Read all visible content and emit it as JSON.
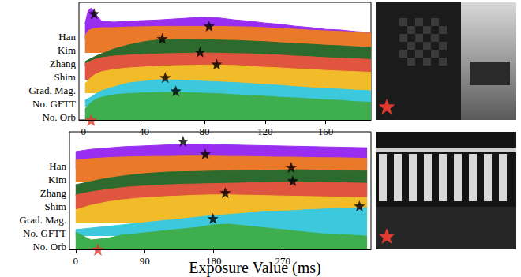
{
  "chart_data": [
    {
      "type": "ridgeline",
      "xlim": [
        -3,
        190
      ],
      "xticks": [
        0,
        40,
        80,
        120,
        160
      ],
      "ylim": [
        0,
        1
      ],
      "grid": false,
      "tick_labels": "x",
      "marker": "star",
      "reference_exposure": 5,
      "x": [
        1,
        3,
        5,
        8,
        12,
        20,
        30,
        40,
        50,
        60,
        70,
        80,
        90,
        100,
        110,
        120,
        130,
        140,
        150,
        160,
        170,
        180,
        190
      ],
      "series": [
        {
          "name": "Han",
          "color": "#9a2ef0",
          "best": [
            7,
            0.82
          ],
          "values": [
            0.5,
            0.9,
            1.0,
            0.8,
            0.58,
            0.55,
            0.58,
            0.6,
            0.62,
            0.65,
            0.68,
            0.7,
            0.68,
            0.62,
            0.58,
            0.52,
            0.48,
            0.42,
            0.38,
            0.32,
            0.3,
            0.25,
            0.22
          ]
        },
        {
          "name": "Kim",
          "color": "#ea7a2a",
          "best": [
            83,
            0.85
          ],
          "values": [
            0.55,
            0.7,
            0.75,
            0.78,
            0.8,
            0.8,
            0.82,
            0.83,
            0.84,
            0.84,
            0.84,
            0.84,
            0.84,
            0.83,
            0.82,
            0.8,
            0.77,
            0.75,
            0.72,
            0.7,
            0.68,
            0.66,
            0.65
          ]
        },
        {
          "name": "Zhang",
          "color": "#2d6a2d",
          "best": [
            52,
            0.88
          ],
          "values": [
            0.15,
            0.2,
            0.25,
            0.32,
            0.4,
            0.55,
            0.68,
            0.78,
            0.84,
            0.85,
            0.85,
            0.84,
            0.83,
            0.82,
            0.8,
            0.78,
            0.75,
            0.72,
            0.7,
            0.67,
            0.65,
            0.62,
            0.6
          ]
        },
        {
          "name": "Shim",
          "color": "#e0553f",
          "best": [
            77,
            0.88
          ],
          "values": [
            0.5,
            0.55,
            0.6,
            0.65,
            0.7,
            0.75,
            0.78,
            0.8,
            0.82,
            0.83,
            0.84,
            0.85,
            0.84,
            0.83,
            0.82,
            0.8,
            0.78,
            0.75,
            0.73,
            0.7,
            0.68,
            0.66,
            0.64
          ]
        },
        {
          "name": "Grad. Mag.",
          "color": "#f2bb2a",
          "best": [
            88,
            0.92
          ],
          "values": [
            0.3,
            0.4,
            0.5,
            0.6,
            0.68,
            0.75,
            0.8,
            0.83,
            0.85,
            0.87,
            0.88,
            0.89,
            0.89,
            0.88,
            0.85,
            0.82,
            0.8,
            0.77,
            0.75,
            0.72,
            0.7,
            0.68,
            0.66
          ]
        },
        {
          "name": "No. GFTT",
          "color": "#3cc8dd",
          "best": [
            54,
            0.92
          ],
          "values": [
            0.2,
            0.25,
            0.3,
            0.4,
            0.5,
            0.62,
            0.75,
            0.8,
            0.85,
            0.84,
            0.82,
            0.8,
            0.78,
            0.76,
            0.73,
            0.7,
            0.67,
            0.63,
            0.6,
            0.57,
            0.55,
            0.52,
            0.5
          ]
        },
        {
          "name": "No. Orb",
          "color": "#3fae4f",
          "best": [
            61,
            0.92
          ],
          "values": [
            0.35,
            0.45,
            0.55,
            0.65,
            0.72,
            0.8,
            0.84,
            0.86,
            0.87,
            0.88,
            0.86,
            0.85,
            0.83,
            0.8,
            0.78,
            0.75,
            0.72,
            0.7,
            0.67,
            0.64,
            0.62,
            0.58,
            0.56
          ]
        }
      ]
    },
    {
      "type": "ridgeline",
      "xlabel": "Exposure Value (ms)",
      "xlim": [
        -8,
        385
      ],
      "xticks": [
        0,
        90,
        180,
        270
      ],
      "ylim": [
        0,
        1
      ],
      "grid": false,
      "tick_labels": "x",
      "marker": "star",
      "reference_exposure": 29,
      "x": [
        0,
        20,
        40,
        60,
        80,
        100,
        120,
        140,
        160,
        180,
        200,
        220,
        240,
        260,
        280,
        300,
        320,
        340,
        360,
        380
      ],
      "series": [
        {
          "name": "Han",
          "color": "#9a2ef0",
          "best": [
            140,
            0.88
          ],
          "values": [
            0.55,
            0.62,
            0.66,
            0.7,
            0.72,
            0.74,
            0.76,
            0.78,
            0.78,
            0.77,
            0.76,
            0.75,
            0.74,
            0.73,
            0.72,
            0.71,
            0.7,
            0.69,
            0.68,
            0.67
          ]
        },
        {
          "name": "Kim",
          "color": "#ea7a2a",
          "best": [
            169,
            0.9
          ],
          "values": [
            0.7,
            0.75,
            0.78,
            0.8,
            0.81,
            0.82,
            0.82,
            0.83,
            0.83,
            0.83,
            0.82,
            0.82,
            0.81,
            0.8,
            0.8,
            0.79,
            0.78,
            0.78,
            0.77,
            0.76
          ]
        },
        {
          "name": "Zhang",
          "color": "#2d6a2d",
          "best": [
            281,
            0.9
          ],
          "values": [
            0.35,
            0.45,
            0.55,
            0.62,
            0.68,
            0.72,
            0.75,
            0.76,
            0.77,
            0.78,
            0.79,
            0.8,
            0.8,
            0.81,
            0.82,
            0.82,
            0.81,
            0.8,
            0.79,
            0.78
          ]
        },
        {
          "name": "Shim",
          "color": "#e0553f",
          "best": [
            283,
            0.9
          ],
          "values": [
            0.45,
            0.55,
            0.62,
            0.68,
            0.72,
            0.75,
            0.77,
            0.79,
            0.8,
            0.81,
            0.82,
            0.83,
            0.84,
            0.85,
            0.85,
            0.86,
            0.85,
            0.84,
            0.83,
            0.82
          ]
        },
        {
          "name": "Grad. Mag.",
          "color": "#f2bb2a",
          "best": [
            195,
            0.95
          ],
          "values": [
            0.4,
            0.55,
            0.65,
            0.72,
            0.77,
            0.8,
            0.83,
            0.85,
            0.87,
            0.88,
            0.88,
            0.87,
            0.86,
            0.85,
            0.84,
            0.83,
            0.82,
            0.81,
            0.8,
            0.8
          ]
        },
        {
          "name": "No. GFTT",
          "color": "#3cc8dd",
          "best": [
            370,
            0.95
          ],
          "values": [
            0.2,
            0.25,
            0.3,
            0.35,
            0.4,
            0.45,
            0.5,
            0.55,
            0.6,
            0.65,
            0.68,
            0.72,
            0.75,
            0.78,
            0.8,
            0.83,
            0.85,
            0.87,
            0.89,
            0.9
          ]
        },
        {
          "name": "No. Orb",
          "color": "#3fae4f",
          "best": [
            179,
            0.98
          ],
          "values": [
            0.55,
            0.3,
            0.35,
            0.45,
            0.5,
            0.55,
            0.6,
            0.65,
            0.7,
            0.78,
            0.8,
            0.75,
            0.7,
            0.65,
            0.6,
            0.55,
            0.5,
            0.48,
            0.45,
            0.42
          ]
        }
      ]
    }
  ]
}
